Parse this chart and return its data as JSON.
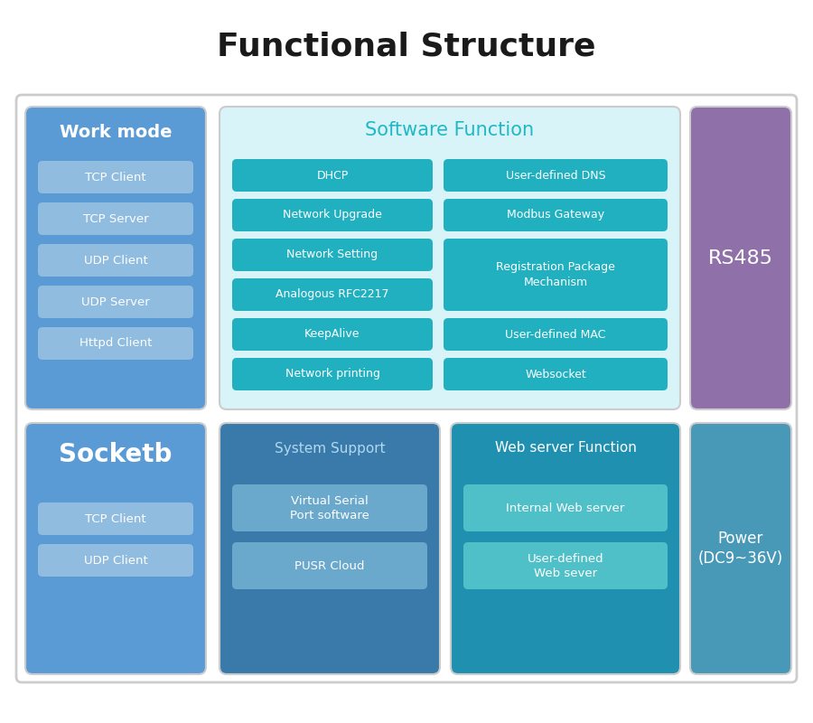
{
  "title": "Functional Structure",
  "title_fontsize": 26,
  "title_fontweight": "bold",
  "bg_color": "#ffffff",
  "work_mode": {
    "label": "Work mode",
    "label_color": "#ffffff",
    "bg_color": "#5b9bd5",
    "items": [
      "TCP Client",
      "TCP Server",
      "UDP Client",
      "UDP Server",
      "Httpd Client"
    ],
    "item_bg": "#90bce0",
    "item_color": "#ffffff"
  },
  "socketb": {
    "label": "Socketb",
    "label_color": "#ffffff",
    "bg_color": "#5b9bd5",
    "items": [
      "TCP Client",
      "UDP Client"
    ],
    "item_bg": "#90bce0",
    "item_color": "#ffffff"
  },
  "software": {
    "label": "Software Function",
    "label_color": "#20b8c8",
    "bg_color": "#d8f4f8",
    "left_items": [
      "DHCP",
      "Network Upgrade",
      "Network Setting",
      "Analogous RFC2217",
      "KeepAlive",
      "Network printing"
    ],
    "right_items": [
      "User-defined DNS",
      "Modbus Gateway",
      "Registration Package\nMechanism",
      "User-defined MAC",
      "Websocket"
    ],
    "item_bg": "#20b0c0",
    "item_color": "#ffffff"
  },
  "system_support": {
    "label": "System Support",
    "label_color": "#b0d8f0",
    "bg_color": "#3a7aaa",
    "items": [
      "Virtual Serial\nPort software",
      "PUSR Cloud"
    ],
    "item_bg": "#6aa8cc",
    "item_color": "#ffffff"
  },
  "web_server": {
    "label": "Web server Function",
    "label_color": "#ffffff",
    "bg_color": "#2090b0",
    "items": [
      "Internal Web server",
      "User-defined\nWeb sever"
    ],
    "item_bg": "#50c0c8",
    "item_color": "#ffffff"
  },
  "rs485": {
    "label": "RS485",
    "label_color": "#ffffff",
    "bg_color": "#9070a8"
  },
  "power": {
    "label": "Power\n(DC9~36V)",
    "label_color": "#ffffff",
    "bg_color": "#4898b8"
  }
}
